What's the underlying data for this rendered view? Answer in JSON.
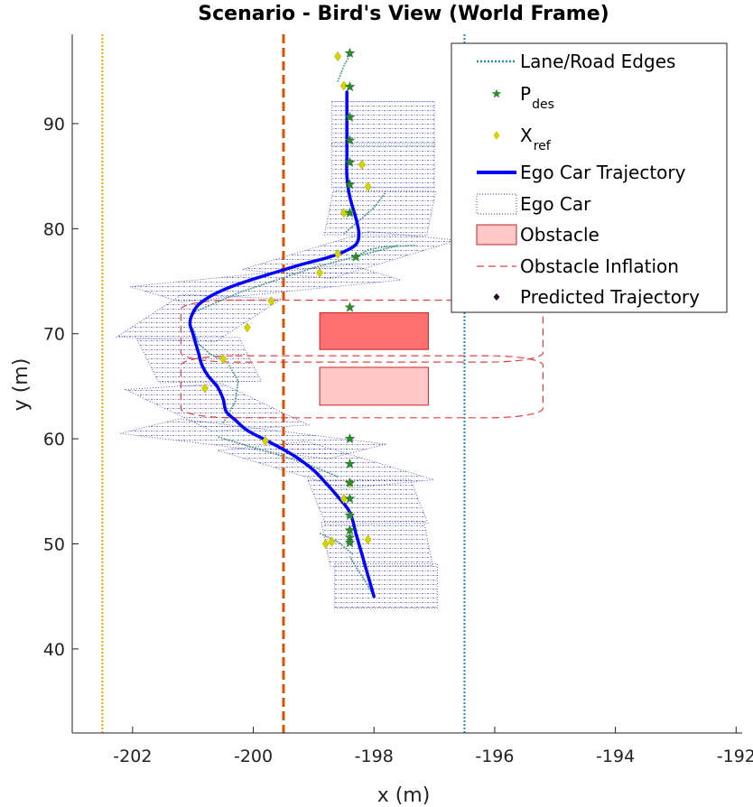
{
  "chart_data": {
    "type": "line",
    "title": "Scenario - Bird's View (World Frame)",
    "xlabel": "x (m)",
    "ylabel": "y (m)",
    "xlim": [
      -203,
      -191.9
    ],
    "ylim": [
      32,
      98.5
    ],
    "xticks": [
      -202,
      -200,
      -198,
      -196,
      -194,
      -192
    ],
    "yticks": [
      40,
      50,
      60,
      70,
      80,
      90
    ],
    "grid": false,
    "legend_location": "top-right",
    "legend": [
      {
        "key": "lane",
        "label": "Lane/Road Edges",
        "style": "dotted-line",
        "color": "#1f8fb8"
      },
      {
        "key": "pdes",
        "label": "P",
        "sub": "des",
        "style": "star",
        "color": "#2e8b2e"
      },
      {
        "key": "xref",
        "label": "X",
        "sub": "ref",
        "style": "diamond",
        "color": "#d4d400"
      },
      {
        "key": "ego",
        "label": "Ego Car Trajectory",
        "style": "thick-line",
        "color": "#0000ff"
      },
      {
        "key": "egocar",
        "label": "Ego Car",
        "style": "dotted-box",
        "color": "#3333cc"
      },
      {
        "key": "obstacle",
        "label": "Obstacle",
        "style": "filled-box",
        "color": "#ff7070"
      },
      {
        "key": "inflation",
        "label": "Obstacle Inflation",
        "style": "dashed-line",
        "color": "#e04040"
      },
      {
        "key": "predicted",
        "label": "Predicted Trajectory",
        "style": "dot",
        "color": "#2a0a2a"
      }
    ],
    "lane_edges": [
      {
        "x": -202.5,
        "color": "#e0a800",
        "style": "dotted"
      },
      {
        "x": -199.5,
        "color": "#e05000",
        "style": "dashed"
      },
      {
        "x": -196.5,
        "color": "#1f8fb8",
        "style": "dotted"
      }
    ],
    "obstacles": [
      {
        "x0": -198.9,
        "x1": -197.1,
        "y0": 68.5,
        "y1": 72.0,
        "color": "#ff7070"
      },
      {
        "x0": -198.9,
        "x1": -197.1,
        "y0": 63.2,
        "y1": 66.8,
        "color": "#ffc8c8"
      }
    ],
    "inflations": [
      {
        "x0": -201.2,
        "x1": -195.2,
        "y0": 67.3,
        "y1": 73.2,
        "r": 0.9
      },
      {
        "x0": -201.2,
        "x1": -195.2,
        "y0": 62.0,
        "y1": 67.9,
        "r": 0.9
      }
    ],
    "ego_trajectory": {
      "x": [
        -198.0,
        -198.1,
        -198.2,
        -198.3,
        -198.4,
        -198.6,
        -198.8,
        -199.0,
        -199.3,
        -199.7,
        -200.1,
        -200.3,
        -200.45,
        -200.5,
        -200.6,
        -200.75,
        -200.85,
        -200.9,
        -200.95,
        -201.0,
        -201.05,
        -201.0,
        -200.9,
        -200.7,
        -200.4,
        -200.0,
        -199.6,
        -199.2,
        -198.8,
        -198.5,
        -198.3,
        -198.25,
        -198.3,
        -198.4,
        -198.45,
        -198.45,
        -198.45,
        -198.45
      ],
      "y": [
        45.0,
        47.0,
        49.0,
        51.0,
        53.0,
        54.5,
        55.8,
        57.0,
        58.3,
        59.6,
        60.8,
        61.8,
        62.6,
        63.8,
        65.0,
        66.0,
        67.0,
        68.0,
        69.0,
        70.0,
        71.0,
        72.0,
        72.8,
        73.6,
        74.4,
        75.2,
        75.9,
        76.6,
        77.2,
        77.8,
        78.5,
        79.5,
        81.0,
        83.0,
        85.0,
        87.0,
        90.0,
        93.0
      ]
    },
    "p_des": [
      [
        -198.4,
        96.7
      ],
      [
        -198.4,
        93.5
      ],
      [
        -198.4,
        90.6
      ],
      [
        -198.4,
        88.4
      ],
      [
        -198.4,
        86.3
      ],
      [
        -198.4,
        84.2
      ],
      [
        -198.4,
        81.5
      ],
      [
        -198.3,
        77.3
      ],
      [
        -198.4,
        72.5
      ],
      [
        -198.4,
        60.0
      ],
      [
        -198.4,
        57.6
      ],
      [
        -198.4,
        55.8
      ],
      [
        -198.4,
        54.3
      ],
      [
        -198.4,
        52.7
      ],
      [
        -198.4,
        51.3
      ],
      [
        -198.4,
        50.6
      ],
      [
        -198.4,
        50.1
      ]
    ],
    "x_ref": [
      [
        -198.6,
        96.4
      ],
      [
        -198.5,
        93.6
      ],
      [
        -198.2,
        86.1
      ],
      [
        -198.1,
        84.0
      ],
      [
        -198.5,
        81.5
      ],
      [
        -198.6,
        77.6
      ],
      [
        -198.9,
        75.8
      ],
      [
        -199.7,
        73.1
      ],
      [
        -200.1,
        70.6
      ],
      [
        -200.5,
        67.6
      ],
      [
        -200.8,
        64.8
      ],
      [
        -199.8,
        59.8
      ],
      [
        -198.4,
        55.8
      ],
      [
        -198.5,
        54.3
      ],
      [
        -198.7,
        50.2
      ],
      [
        -198.8,
        50.0
      ],
      [
        -198.1,
        50.4
      ]
    ],
    "ego_car_boxes": [
      {
        "xc": -197.8,
        "yc": 46.0,
        "heading_deg": 90
      },
      {
        "xc": -197.95,
        "yc": 50.0,
        "heading_deg": 92
      },
      {
        "xc": -198.1,
        "yc": 54.0,
        "heading_deg": 94
      },
      {
        "xc": -198.8,
        "yc": 57.5,
        "heading_deg": 120
      },
      {
        "xc": -200.0,
        "yc": 60.0,
        "heading_deg": 145
      },
      {
        "xc": -200.6,
        "yc": 63.0,
        "heading_deg": 110
      },
      {
        "xc": -200.9,
        "yc": 67.5,
        "heading_deg": 95
      },
      {
        "xc": -200.9,
        "yc": 71.5,
        "heading_deg": 75
      },
      {
        "xc": -199.8,
        "yc": 74.8,
        "heading_deg": 30
      },
      {
        "xc": -198.4,
        "yc": 77.5,
        "heading_deg": 60
      },
      {
        "xc": -197.9,
        "yc": 81.5,
        "heading_deg": 88
      },
      {
        "xc": -197.85,
        "yc": 86.0,
        "heading_deg": 90
      },
      {
        "xc": -197.85,
        "yc": 90.0,
        "heading_deg": 90
      }
    ],
    "predicted_trajectories": [
      {
        "x": [
          -198.0,
          -198.15,
          -198.3,
          -198.4
        ],
        "y": [
          45.0,
          46.5,
          47.8,
          48.8
        ]
      },
      {
        "x": [
          -198.35,
          -198.6,
          -198.9
        ],
        "y": [
          49.0,
          50.2,
          51.0
        ]
      },
      {
        "x": [
          -198.6,
          -199.2,
          -199.9,
          -200.6
        ],
        "y": [
          56.4,
          57.8,
          59.0,
          60.2
        ]
      },
      {
        "x": [
          -200.5,
          -200.3,
          -200.25,
          -200.4
        ],
        "y": [
          61.5,
          63.5,
          65.5,
          67.0
        ]
      },
      {
        "x": [
          -201.0,
          -200.9,
          -200.7,
          -200.5
        ],
        "y": [
          70.5,
          69.0,
          68.0,
          67.5
        ]
      },
      {
        "x": [
          -201.0,
          -200.2,
          -199.0,
          -197.6
        ],
        "y": [
          72.0,
          74.0,
          76.3,
          78.4
        ]
      },
      {
        "x": [
          -198.3,
          -198.1,
          -197.8,
          -197.3
        ],
        "y": [
          77.3,
          78.0,
          78.3,
          78.4
        ]
      },
      {
        "x": [
          -198.5,
          -198.3,
          -198.0,
          -197.8
        ],
        "y": [
          79.5,
          80.5,
          82.0,
          83.5
        ]
      },
      {
        "x": [
          -198.6,
          -198.5,
          -198.4
        ],
        "y": [
          94.0,
          95.5,
          96.5
        ]
      }
    ]
  }
}
